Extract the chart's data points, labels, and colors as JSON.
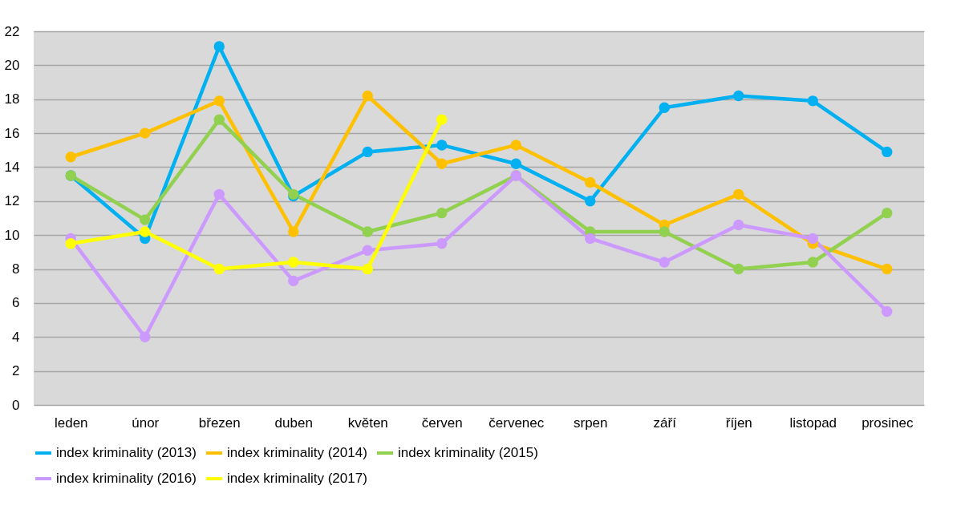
{
  "chart_data": {
    "type": "line",
    "categories": [
      "leden",
      "únor",
      "březen",
      "duben",
      "květen",
      "červen",
      "červenec",
      "srpen",
      "září",
      "říjen",
      "listopad",
      "prosinec"
    ],
    "series": [
      {
        "name": "index kriminality (2013)",
        "color": "#00b0f0",
        "values": [
          13.5,
          9.8,
          21.1,
          12.3,
          14.9,
          15.3,
          14.2,
          12.0,
          17.5,
          18.2,
          17.9,
          14.9
        ]
      },
      {
        "name": "index kriminality (2014)",
        "color": "#ffc000",
        "values": [
          14.6,
          16.0,
          17.9,
          10.2,
          18.2,
          14.2,
          15.3,
          13.1,
          10.6,
          12.4,
          9.5,
          8.0
        ]
      },
      {
        "name": "index kriminality (2015)",
        "color": "#92d050",
        "values": [
          13.5,
          10.9,
          16.8,
          12.4,
          10.2,
          11.3,
          13.5,
          10.2,
          10.2,
          8.0,
          8.4,
          11.3
        ]
      },
      {
        "name": "index kriminality (2016)",
        "color": "#cc99ff",
        "values": [
          9.8,
          4.0,
          12.4,
          7.3,
          9.1,
          9.5,
          13.5,
          9.8,
          8.4,
          10.6,
          9.8,
          5.5
        ]
      },
      {
        "name": "index kriminality (2017)",
        "color": "#ffff00",
        "values": [
          9.5,
          10.2,
          8.0,
          8.4,
          8.0,
          16.8,
          null,
          null,
          null,
          null,
          null,
          null
        ]
      }
    ],
    "ylim": [
      0,
      22
    ],
    "yticks": [
      0,
      2,
      4,
      6,
      8,
      10,
      12,
      14,
      16,
      18,
      20,
      22
    ],
    "grid": "y",
    "legend": "bottom",
    "marker": "circle",
    "line_style": "solid"
  }
}
